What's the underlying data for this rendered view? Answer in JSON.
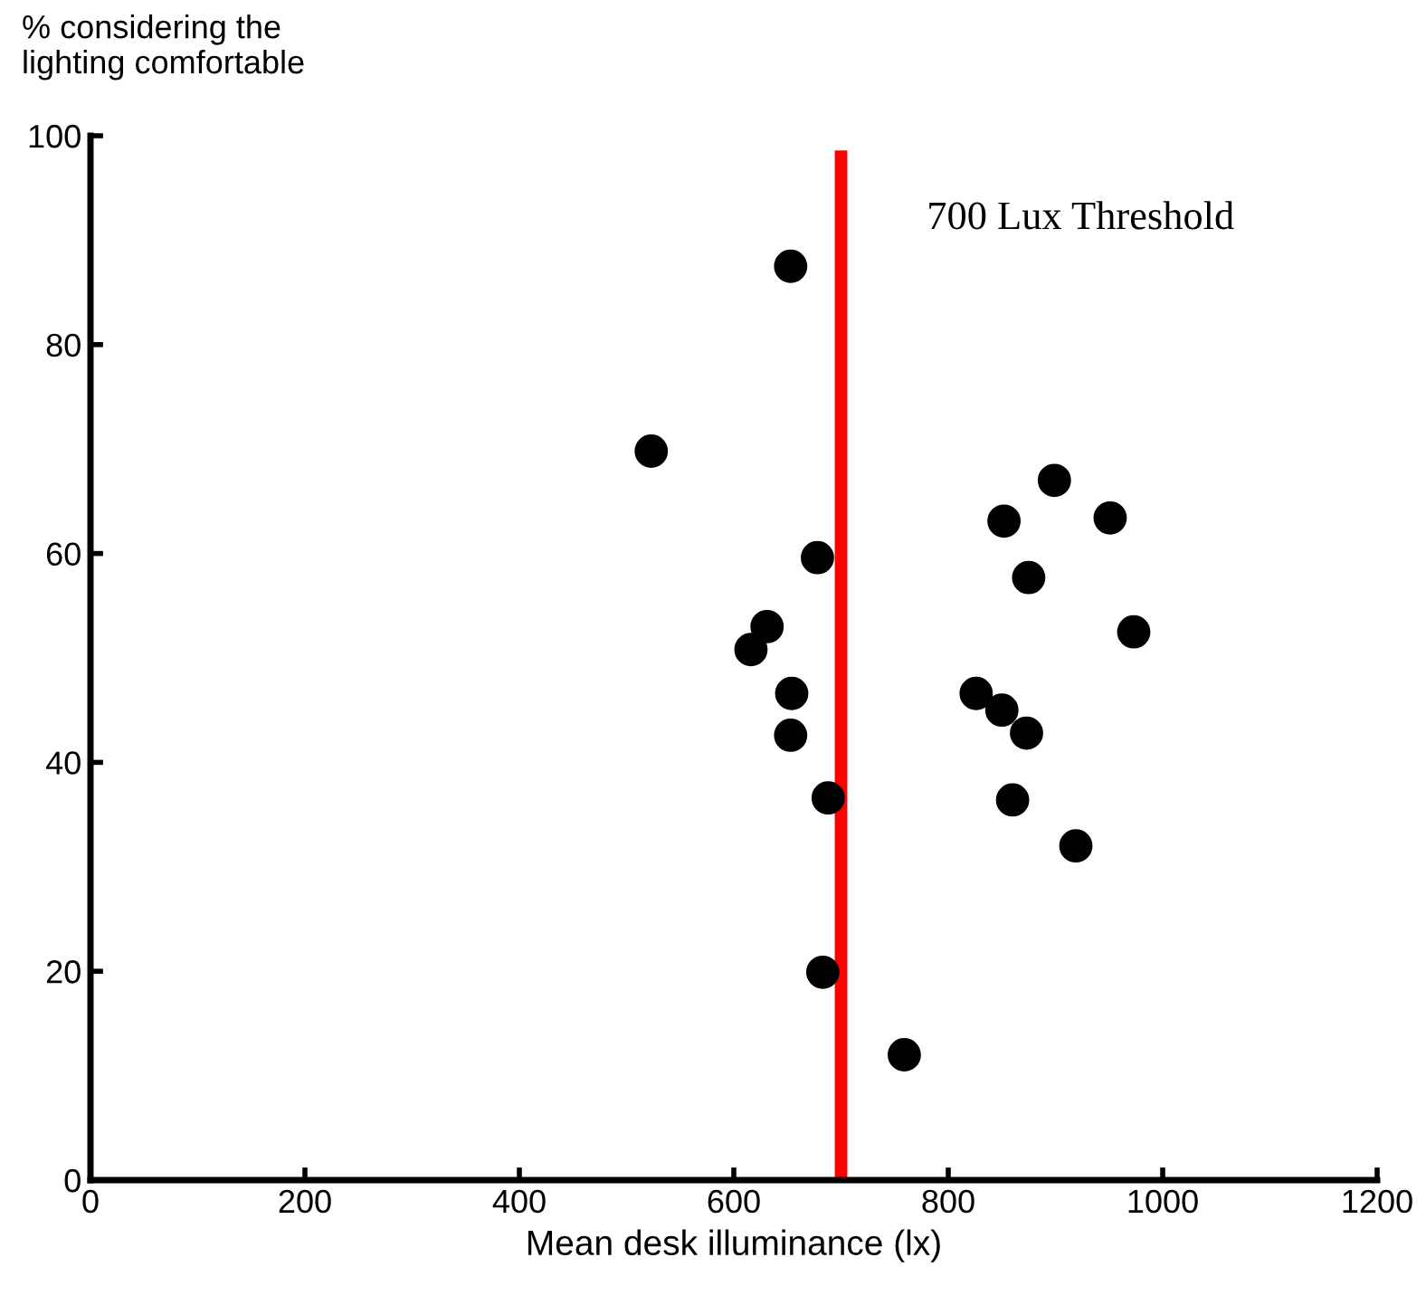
{
  "chart_data": {
    "type": "scatter",
    "ylabel": "% considering the\nlighting comfortable",
    "xlabel": "Mean desk illuminance (lx)",
    "x": [
      523,
      653,
      678,
      631,
      616,
      654,
      653,
      688,
      683,
      759,
      826,
      850,
      873,
      860,
      852,
      875,
      899,
      951,
      973,
      919
    ],
    "values": [
      69.8,
      87.5,
      59.6,
      53,
      50.8,
      46.6,
      42.6,
      36.6,
      19.9,
      12,
      46.6,
      45,
      42.8,
      36.4,
      63.1,
      57.7,
      67,
      63.4,
      52.5,
      32
    ],
    "color": "#000000",
    "marker": "circle",
    "xlim": [
      0,
      1200
    ],
    "ylim": [
      0,
      100
    ],
    "xticks": [
      0,
      200,
      400,
      600,
      800,
      1000,
      1200
    ],
    "yticks": [
      0,
      20,
      40,
      60,
      80,
      100
    ],
    "grid": false,
    "ref_lines": [
      {
        "axis": "x",
        "value": 700,
        "label": "700 Lux Threshold",
        "color": "#ff0000"
      }
    ]
  }
}
